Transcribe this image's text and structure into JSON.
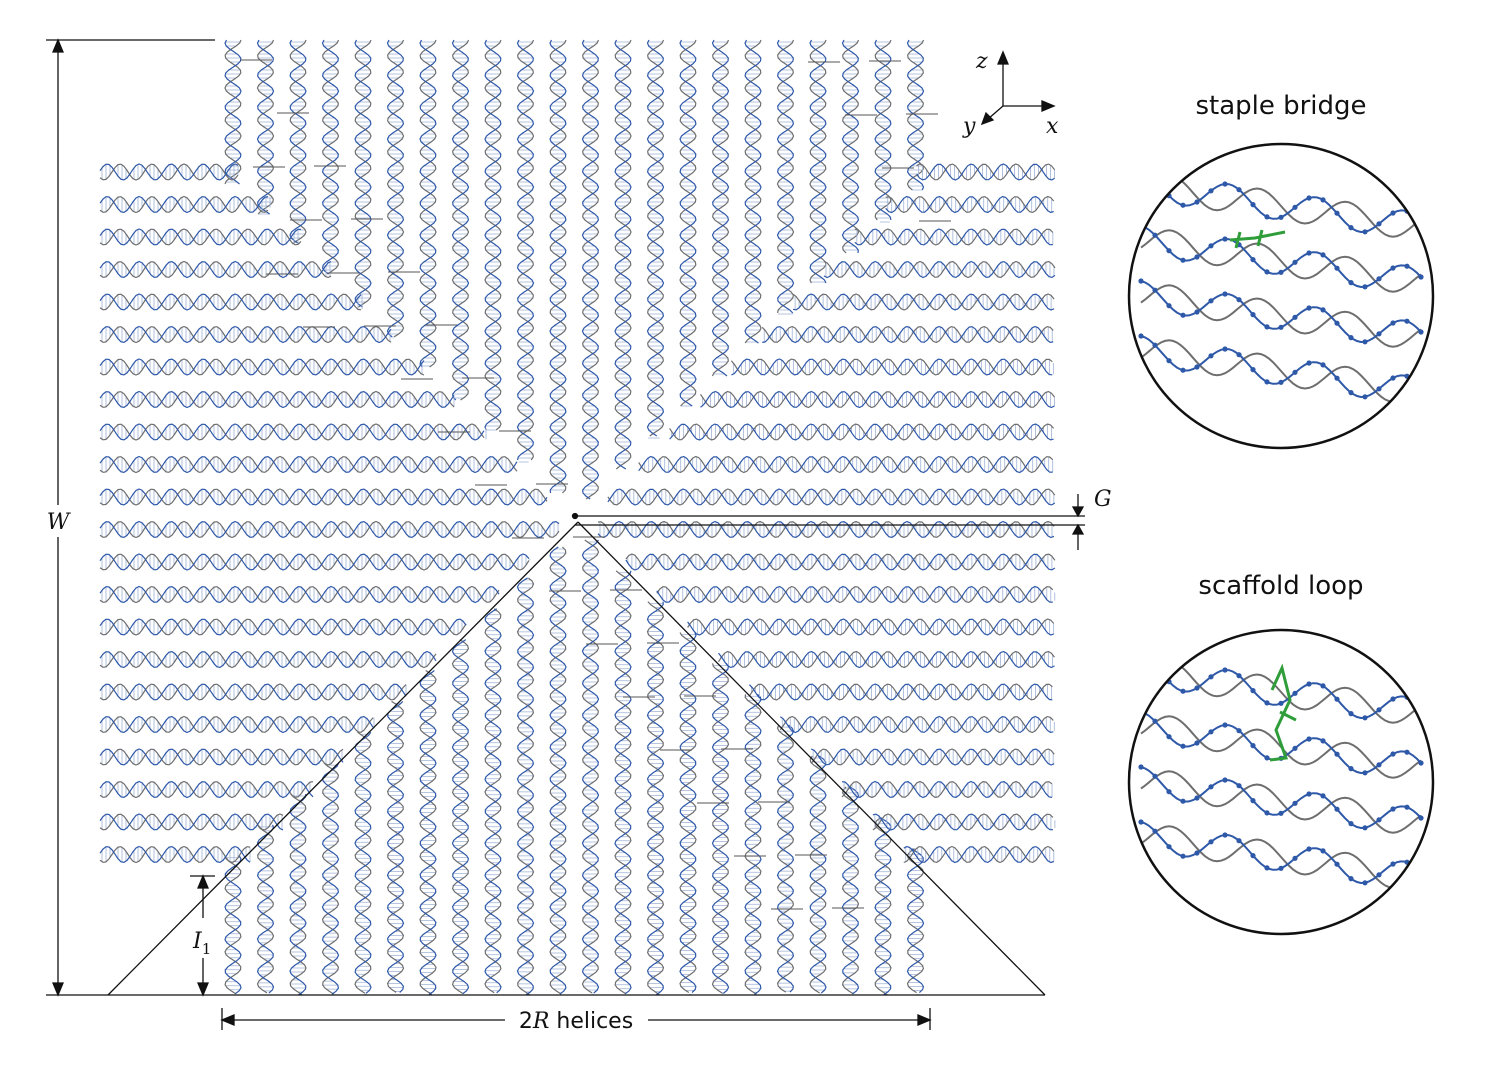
{
  "labels": {
    "width_label": "W",
    "gap_label": "G",
    "i_label": "I",
    "i_subscript": "1",
    "radius_prefix": "2",
    "radius_symbol": "R",
    "radius_suffix": " helices",
    "axis_z": "z",
    "axis_y": "y",
    "axis_x": "x"
  },
  "insets": {
    "staple_bridge_title": "staple bridge",
    "scaffold_loop_title": "scaffold loop"
  },
  "colors": {
    "strand_blue": "#2e58a8",
    "strand_gray": "#6e6e6e",
    "rung_light": "#9fb2d6",
    "bridge_green": "#2f9e3a",
    "line": "#111111"
  }
}
